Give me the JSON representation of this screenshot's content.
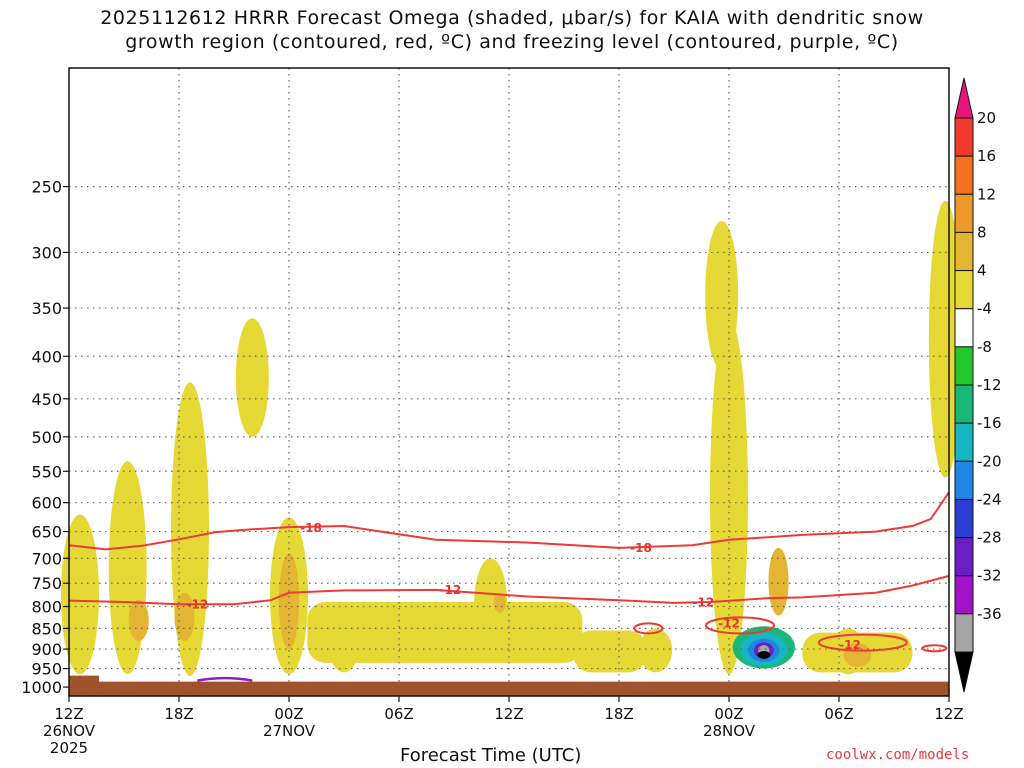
{
  "title": {
    "line1": "2025112612 HRRR Forecast Omega (shaded, μbar/s) for KAIA with dendritic snow",
    "line2": "growth region (contoured, red, ºC) and freezing level (contoured, purple, ºC)"
  },
  "chart_data": {
    "type": "heatmap",
    "xlabel": "Forecast Time (UTC)",
    "ylabel": "",
    "x_ticks": [
      {
        "label": "12Z",
        "sub": "26NOV",
        "sub2": "2025",
        "hours": 0
      },
      {
        "label": "18Z",
        "sub": "",
        "sub2": "",
        "hours": 6
      },
      {
        "label": "00Z",
        "sub": "27NOV",
        "sub2": "",
        "hours": 12
      },
      {
        "label": "06Z",
        "sub": "",
        "sub2": "",
        "hours": 18
      },
      {
        "label": "12Z",
        "sub": "",
        "sub2": "",
        "hours": 24
      },
      {
        "label": "18Z",
        "sub": "",
        "sub2": "",
        "hours": 30
      },
      {
        "label": "00Z",
        "sub": "28NOV",
        "sub2": "",
        "hours": 36
      },
      {
        "label": "06Z",
        "sub": "",
        "sub2": "",
        "hours": 42
      },
      {
        "label": "12Z",
        "sub": "",
        "sub2": "",
        "hours": 48
      }
    ],
    "x_range_hours": [
      0,
      48
    ],
    "y_ticks": [
      250,
      300,
      350,
      400,
      450,
      500,
      550,
      600,
      650,
      700,
      750,
      800,
      850,
      900,
      950,
      1000
    ],
    "y_range_hpa": [
      180,
      1025
    ],
    "surface_hpa": 985,
    "colorbar": {
      "levels": [
        "20",
        "16",
        "12",
        "8",
        "4",
        "-4",
        "-8",
        "-12",
        "-16",
        "-20",
        "-24",
        "-28",
        "-32",
        "-36"
      ],
      "colors": [
        "#e8147a",
        "#f23a2c",
        "#f4711f",
        "#ee9a2a",
        "#e3b533",
        "#e6d935",
        "#ffffff",
        "#22c82a",
        "#19b878",
        "#18b4c4",
        "#1f86e6",
        "#2a3ed4",
        "#6a1ec4",
        "#a012c8",
        "#a6a6a6",
        "#000000"
      ]
    },
    "contours": {
      "dgz_labels": [
        "-18",
        "-12",
        "-12",
        "-18",
        "-12",
        "-12",
        "-12"
      ],
      "minus18_line": [
        [
          0,
          675
        ],
        [
          2,
          683
        ],
        [
          4,
          676
        ],
        [
          6,
          664
        ],
        [
          8,
          651
        ],
        [
          10,
          646
        ],
        [
          12,
          642
        ],
        [
          15,
          640
        ],
        [
          20,
          665
        ],
        [
          25,
          670
        ],
        [
          30,
          680
        ],
        [
          34,
          675
        ],
        [
          36,
          665
        ],
        [
          40,
          656
        ],
        [
          44,
          650
        ],
        [
          46,
          640
        ],
        [
          47,
          628
        ],
        [
          48,
          583
        ]
      ],
      "minus12_line": [
        [
          0,
          787
        ],
        [
          3,
          790
        ],
        [
          6,
          795
        ],
        [
          9,
          795
        ],
        [
          11,
          786
        ],
        [
          12,
          770
        ],
        [
          15,
          765
        ],
        [
          20,
          764
        ],
        [
          25,
          778
        ],
        [
          30,
          786
        ],
        [
          33,
          792
        ],
        [
          35,
          790
        ],
        [
          38,
          782
        ],
        [
          40,
          780
        ],
        [
          44,
          770
        ],
        [
          46,
          755
        ],
        [
          48,
          735
        ]
      ]
    },
    "omega_regions": [
      {
        "value": 4,
        "t": 0.6,
        "p": [
          620,
          965
        ]
      },
      {
        "value": 4,
        "t": 3.2,
        "p": [
          535,
          965
        ]
      },
      {
        "value": 8,
        "t": 3.8,
        "p": [
          785,
          880
        ]
      },
      {
        "value": 4,
        "t": 6.6,
        "p": [
          430,
          970
        ]
      },
      {
        "value": 8,
        "t": 6.3,
        "p": [
          770,
          880
        ]
      },
      {
        "value": 4,
        "t": 10.0,
        "p": [
          360,
          500
        ]
      },
      {
        "value": 4,
        "t": 12.0,
        "p": [
          625,
          965
        ]
      },
      {
        "value": 8,
        "t": 12.0,
        "p": [
          690,
          900
        ]
      },
      {
        "value": 4,
        "t": 15.0,
        "p": [
          800,
          960
        ]
      },
      {
        "value": 4,
        "t": 23.0,
        "p": [
          700,
          900
        ]
      },
      {
        "value": 4,
        "t": 32.0,
        "p": [
          850,
          960
        ]
      },
      {
        "value": 4,
        "t": 35.6,
        "p": [
          275,
          415
        ]
      },
      {
        "value": 4,
        "t": 36.0,
        "p": [
          360,
          965
        ]
      },
      {
        "value": 8,
        "t": 38.7,
        "p": [
          680,
          820
        ]
      },
      {
        "value": -8,
        "t": 37.9,
        "p": [
          845,
          950
        ]
      },
      {
        "value": -36,
        "t": 37.9,
        "p": [
          905,
          925
        ]
      },
      {
        "value": 4,
        "t": 42.5,
        "p": [
          850,
          965
        ]
      },
      {
        "value": 4,
        "t": 47.8,
        "p": [
          260,
          560
        ]
      }
    ],
    "freezing_level": {
      "t": [
        7,
        10
      ],
      "p": 985
    }
  },
  "axes": {
    "x_title": "Forecast Time (UTC)"
  },
  "credit": "coolwx.com/models"
}
